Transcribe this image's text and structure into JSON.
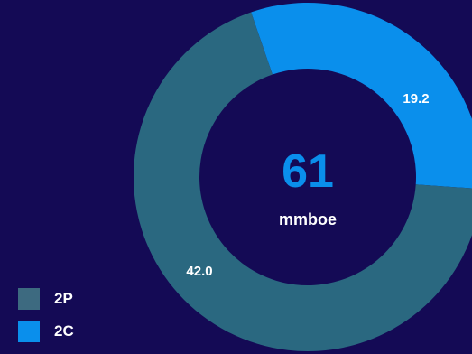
{
  "colors": {
    "background": "#140a55",
    "center_text": "#ffffff",
    "center_value": "#0a8fec",
    "label_text": "#ffffff"
  },
  "chart_data": {
    "type": "pie",
    "donut": true,
    "center": {
      "value": "61",
      "label": "mmboe"
    },
    "slices": [
      {
        "name": "2P",
        "value": 42.0,
        "label": "42.0",
        "color": "#2a6880"
      },
      {
        "name": "2C",
        "value": 19.2,
        "label": "19.2",
        "color": "#0a8fec"
      }
    ],
    "legend": {
      "position": "bottom-left",
      "entries": [
        "2P",
        "2C"
      ]
    },
    "title": "",
    "start_angle_deg": -19
  }
}
